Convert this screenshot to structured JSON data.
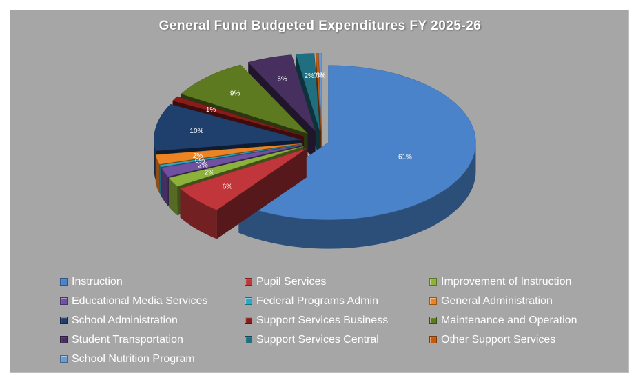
{
  "chart_data": {
    "type": "pie",
    "title": "General Fund Budgeted Expenditures FY 2025-26",
    "legend_position": "bottom",
    "slices": [
      {
        "name": "Instruction",
        "value": 61,
        "label": "61%",
        "color": "#4a83c9"
      },
      {
        "name": "Pupil Services",
        "value": 6,
        "label": "6%",
        "color": "#c0363a"
      },
      {
        "name": "Improvement of Instruction",
        "value": 2,
        "label": "2%",
        "color": "#8db23c"
      },
      {
        "name": "Educational Media Services",
        "value": 2,
        "label": "2%",
        "color": "#7050a0"
      },
      {
        "name": "Federal Programs Admin",
        "value": 0.4,
        "label": "0%",
        "color": "#2aa8c4"
      },
      {
        "name": "General Administration",
        "value": 2,
        "label": "2%",
        "color": "#ec8424"
      },
      {
        "name": "School Administration",
        "value": 10,
        "label": "10%",
        "color": "#1f3f6c"
      },
      {
        "name": "Support Services Business",
        "value": 1,
        "label": "1%",
        "color": "#8a1b1b"
      },
      {
        "name": "Maintenance and Operation",
        "value": 9,
        "label": "9%",
        "color": "#5e7a21"
      },
      {
        "name": "Student Transportation",
        "value": 5,
        "label": "5%",
        "color": "#47305f"
      },
      {
        "name": "Support Services Central",
        "value": 2,
        "label": "2%",
        "color": "#1f6f80"
      },
      {
        "name": "Other Support Services",
        "value": 0.3,
        "label": "0%",
        "color": "#c25b10"
      },
      {
        "name": "School Nutrition Program",
        "value": 0.3,
        "label": "0%",
        "color": "#6c9bd4"
      }
    ]
  }
}
